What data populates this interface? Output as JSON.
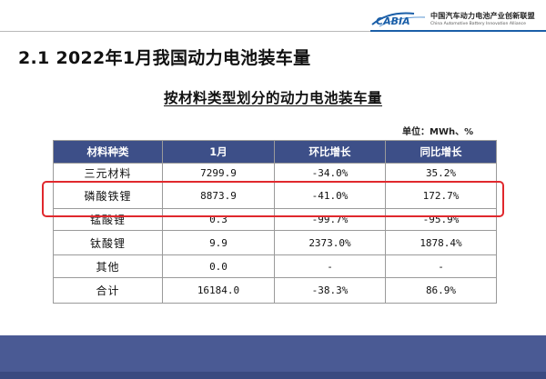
{
  "header": {
    "logo_text": "CABIA",
    "org_name_cn": "中国汽车动力电池产业创新联盟",
    "org_name_en": "China Automotive Battery Innovation Alliance",
    "accent_color": "#1b5fa8"
  },
  "slide_title": "2.1  2022年1月我国动力电池装车量",
  "table": {
    "title": "按材料类型划分的动力电池装车量",
    "unit": "单位：MWh、%",
    "header_color": "#3d4f88",
    "columns": [
      "材料种类",
      "1月",
      "环比增长",
      "同比增长"
    ],
    "rows": [
      {
        "material": "三元材料",
        "jan": "7299.9",
        "mom": "-34.0%",
        "yoy": "35.2%"
      },
      {
        "material": "磷酸铁锂",
        "jan": "8873.9",
        "mom": "-41.0%",
        "yoy": "172.7%"
      },
      {
        "material": "锰酸锂",
        "jan": "0.3",
        "mom": "-99.7%",
        "yoy": "-95.9%"
      },
      {
        "material": "钛酸锂",
        "jan": "9.9",
        "mom": "2373.0%",
        "yoy": "1878.4%"
      },
      {
        "material": "其他",
        "jan": "0.0",
        "mom": "-",
        "yoy": "-"
      },
      {
        "material": "合计",
        "jan": "16184.0",
        "mom": "-38.3%",
        "yoy": "86.9%"
      }
    ],
    "highlighted_row": "磷酸铁锂",
    "highlight_color": "#e0282d"
  },
  "footer": {
    "band_color": "#4a5a94"
  }
}
